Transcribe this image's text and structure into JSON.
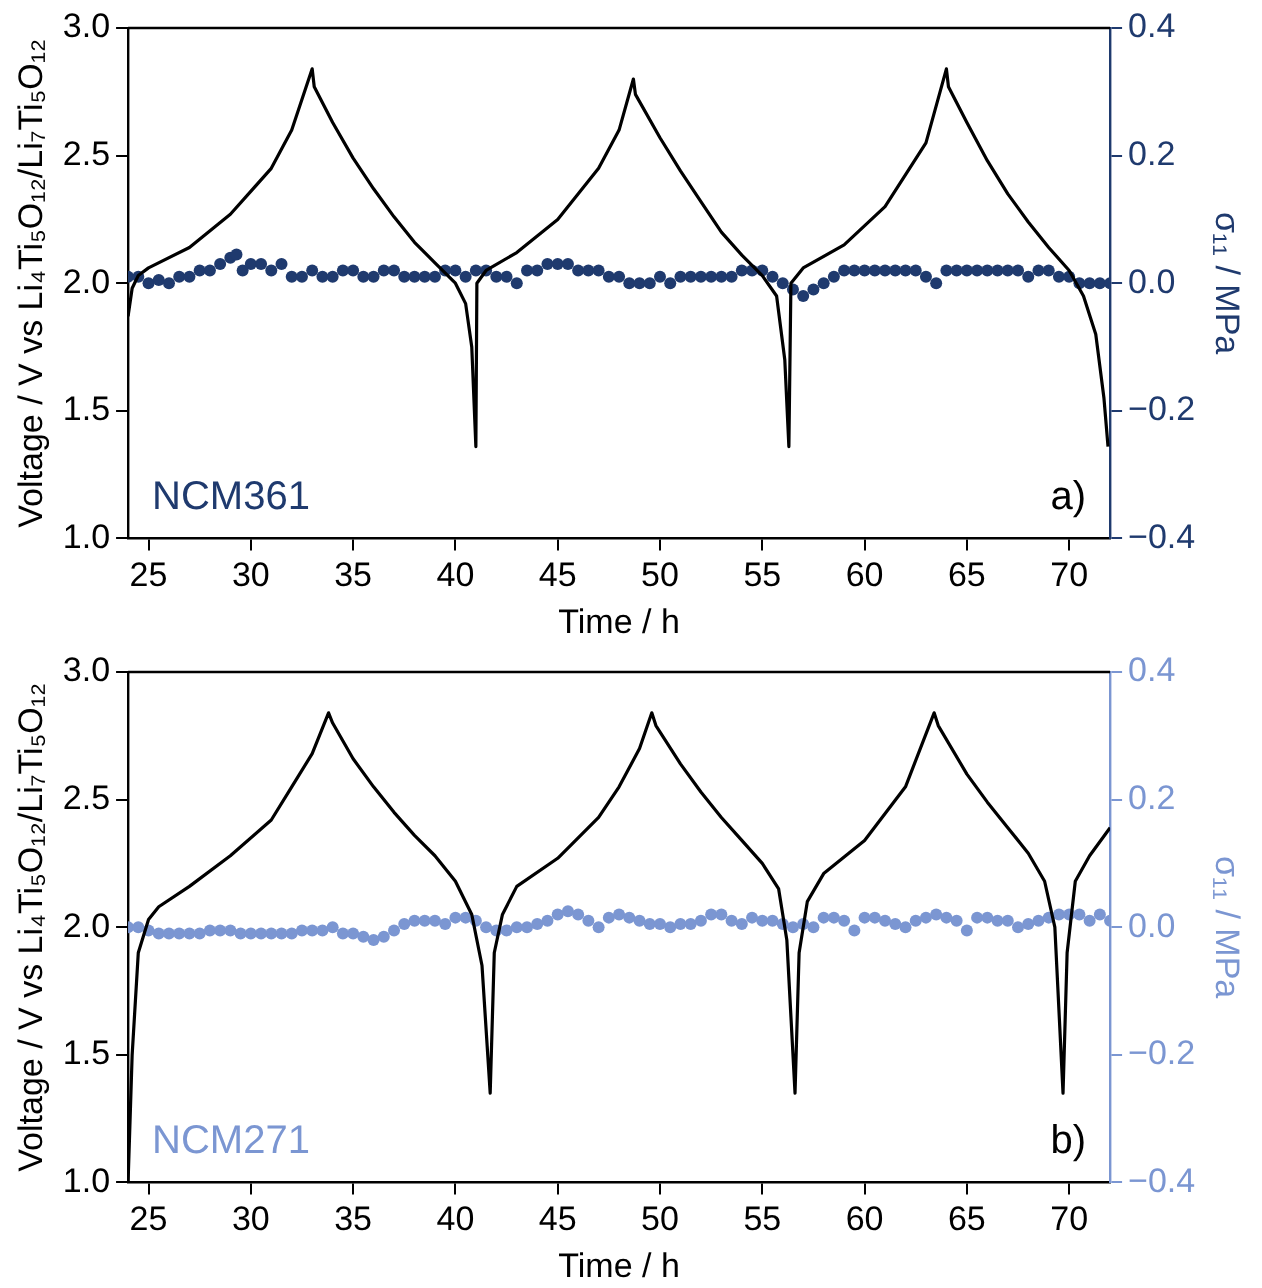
{
  "chart_data": [
    {
      "type": "line",
      "xlabel": "Time / h",
      "ylabel": "Voltage / V vs Li₄Ti₅O₁₂/Li₇Ti₅O₁₂",
      "y2label": "σ₁₁ / MPa",
      "annotations": [
        "a)"
      ],
      "xlim": [
        24,
        72
      ],
      "xticks": [
        25,
        30,
        35,
        40,
        45,
        50,
        55,
        60,
        65,
        70
      ],
      "ylim": [
        1,
        3
      ],
      "yticks": [
        {
          "value": 1,
          "label": "1.0"
        },
        {
          "value": 1.5,
          "label": "1.5"
        },
        {
          "value": 2,
          "label": "2.0"
        },
        {
          "value": 2.5,
          "label": "2.5"
        },
        {
          "value": 3,
          "label": "3.0"
        }
      ],
      "y2lim": [
        -0.4,
        0.4
      ],
      "y2ticks": [
        {
          "value": -0.4,
          "label": "−0.4"
        },
        {
          "value": -0.2,
          "label": "−0.2"
        },
        {
          "value": 0,
          "label": "0.0"
        },
        {
          "value": 0.2,
          "label": "0.2"
        },
        {
          "value": 0.4,
          "label": "0.4"
        }
      ],
      "grid": false,
      "legend": false,
      "series": [
        {
          "type": "line",
          "color": "#000000",
          "marker": "none",
          "x": [
            24,
            24.2,
            24.5,
            25,
            27,
            29,
            31,
            32,
            33,
            33.1,
            34,
            35,
            36,
            37,
            38,
            39,
            40,
            40.5,
            40.8,
            41,
            41.05,
            41.5,
            43,
            45,
            47,
            48,
            48.7,
            48.8,
            50,
            51,
            52,
            53,
            54,
            55,
            55.7,
            56.1,
            56.3,
            56.4,
            57,
            59,
            61,
            63,
            64,
            64.1,
            65,
            66,
            67,
            68,
            69,
            70,
            70.7,
            71.3,
            71.7,
            71.9
          ],
          "values": [
            1.87,
            1.98,
            2.03,
            2.06,
            2.14,
            2.27,
            2.45,
            2.6,
            2.84,
            2.77,
            2.63,
            2.49,
            2.37,
            2.26,
            2.16,
            2.08,
            2.0,
            1.92,
            1.75,
            1.36,
            2.0,
            2.05,
            2.12,
            2.25,
            2.45,
            2.6,
            2.8,
            2.74,
            2.57,
            2.44,
            2.32,
            2.2,
            2.11,
            2.03,
            1.95,
            1.7,
            1.36,
            2.0,
            2.06,
            2.15,
            2.3,
            2.55,
            2.84,
            2.77,
            2.63,
            2.48,
            2.35,
            2.24,
            2.14,
            2.05,
            1.95,
            1.8,
            1.55,
            1.36
          ]
        },
        {
          "type": "scatter",
          "name": "NCM361",
          "color": "#1f3a6e",
          "marker": "circle",
          "axis": "y2",
          "x": [
            24,
            24.5,
            25,
            25.5,
            26,
            26.5,
            27,
            27.5,
            28,
            28.5,
            29,
            29.3,
            29.6,
            30,
            30.5,
            31,
            31.5,
            32,
            32.5,
            33,
            33.5,
            34,
            34.5,
            35,
            35.5,
            36,
            36.5,
            37,
            37.5,
            38,
            38.5,
            39,
            39.5,
            40,
            40.5,
            41,
            41.5,
            42,
            42.5,
            43,
            43.5,
            44,
            44.5,
            45,
            45.5,
            46,
            46.5,
            47,
            47.5,
            48,
            48.5,
            49,
            49.5,
            50,
            50.5,
            51,
            51.5,
            52,
            52.5,
            53,
            53.5,
            54,
            54.5,
            55,
            55.5,
            56,
            56.5,
            57,
            57.5,
            58,
            58.5,
            59,
            59.5,
            60,
            60.5,
            61,
            61.5,
            62,
            62.5,
            63,
            63.5,
            64,
            64.5,
            65,
            65.5,
            66,
            66.5,
            67,
            67.5,
            68,
            68.5,
            69,
            69.5,
            70,
            70.5,
            71,
            71.5,
            72
          ],
          "values": [
            0.01,
            0.01,
            0.0,
            0.005,
            0.0,
            0.01,
            0.01,
            0.02,
            0.02,
            0.03,
            0.04,
            0.045,
            0.02,
            0.03,
            0.03,
            0.02,
            0.03,
            0.01,
            0.01,
            0.02,
            0.01,
            0.01,
            0.02,
            0.02,
            0.01,
            0.01,
            0.02,
            0.02,
            0.01,
            0.01,
            0.01,
            0.01,
            0.02,
            0.02,
            0.01,
            0.02,
            0.02,
            0.01,
            0.01,
            0.0,
            0.02,
            0.02,
            0.03,
            0.03,
            0.03,
            0.02,
            0.02,
            0.02,
            0.01,
            0.01,
            0.0,
            0.0,
            0.0,
            0.01,
            0.0,
            0.01,
            0.01,
            0.01,
            0.01,
            0.01,
            0.01,
            0.02,
            0.02,
            0.02,
            0.01,
            0.0,
            -0.01,
            -0.02,
            -0.01,
            0.0,
            0.01,
            0.02,
            0.02,
            0.02,
            0.02,
            0.02,
            0.02,
            0.02,
            0.02,
            0.01,
            0.0,
            0.02,
            0.02,
            0.02,
            0.02,
            0.02,
            0.02,
            0.02,
            0.02,
            0.01,
            0.02,
            0.02,
            0.01,
            0.01,
            0.0,
            0.0,
            0.0,
            0.0
          ]
        }
      ]
    },
    {
      "type": "line",
      "xlabel": "Time / h",
      "ylabel": "Voltage / V vs Li₄Ti₅O₁₂/Li₇Ti₅O₁₂",
      "y2label": "σ₁₁ / MPa",
      "annotations": [
        "b)"
      ],
      "xlim": [
        24,
        72
      ],
      "xticks": [
        25,
        30,
        35,
        40,
        45,
        50,
        55,
        60,
        65,
        70
      ],
      "ylim": [
        1,
        3
      ],
      "yticks": [
        {
          "value": 1,
          "label": "1.0"
        },
        {
          "value": 1.5,
          "label": "1.5"
        },
        {
          "value": 2,
          "label": "2.0"
        },
        {
          "value": 2.5,
          "label": "2.5"
        },
        {
          "value": 3,
          "label": "3.0"
        }
      ],
      "y2lim": [
        -0.4,
        0.4
      ],
      "y2ticks": [
        {
          "value": -0.4,
          "label": "−0.4"
        },
        {
          "value": -0.2,
          "label": "−0.2"
        },
        {
          "value": 0,
          "label": "0.0"
        },
        {
          "value": 0.2,
          "label": "0.2"
        },
        {
          "value": 0.4,
          "label": "0.4"
        }
      ],
      "grid": false,
      "legend": false,
      "series": [
        {
          "type": "line",
          "color": "#000000",
          "marker": "none",
          "x": [
            24,
            24.2,
            24.5,
            25,
            25.5,
            27,
            29,
            31,
            32,
            33,
            33.8,
            34,
            35,
            36,
            37,
            38,
            39,
            40,
            40.8,
            41.3,
            41.7,
            41.9,
            42.3,
            43,
            45,
            47,
            48,
            49,
            49.6,
            49.8,
            51,
            52,
            53,
            54,
            55,
            55.8,
            56.2,
            56.6,
            56.8,
            57.2,
            58,
            60,
            62,
            63.4,
            63.6,
            65,
            66,
            67,
            68,
            68.8,
            69.3,
            69.7,
            69.9,
            70.3,
            71,
            72
          ],
          "values": [
            1.0,
            1.5,
            1.9,
            2.03,
            2.08,
            2.16,
            2.28,
            2.42,
            2.55,
            2.68,
            2.84,
            2.8,
            2.66,
            2.55,
            2.45,
            2.36,
            2.28,
            2.18,
            2.05,
            1.85,
            1.35,
            1.9,
            2.05,
            2.16,
            2.27,
            2.43,
            2.55,
            2.7,
            2.84,
            2.79,
            2.64,
            2.53,
            2.43,
            2.34,
            2.25,
            2.15,
            1.95,
            1.35,
            1.9,
            2.1,
            2.21,
            2.34,
            2.55,
            2.84,
            2.79,
            2.6,
            2.49,
            2.39,
            2.29,
            2.18,
            2.0,
            1.35,
            1.9,
            2.18,
            2.28,
            2.39
          ]
        },
        {
          "type": "scatter",
          "name": "NCM271",
          "color": "#7b96d2",
          "marker": "circle",
          "axis": "y2",
          "x": [
            24,
            24.5,
            25,
            25.5,
            26,
            26.5,
            27,
            27.5,
            28,
            28.5,
            29,
            29.5,
            30,
            30.5,
            31,
            31.5,
            32,
            32.5,
            33,
            33.5,
            34,
            34.5,
            35,
            35.5,
            36,
            36.5,
            37,
            37.5,
            38,
            38.5,
            39,
            39.5,
            40,
            40.5,
            41,
            41.5,
            42,
            42.5,
            43,
            43.5,
            44,
            44.5,
            45,
            45.5,
            46,
            46.5,
            47,
            47.5,
            48,
            48.5,
            49,
            49.5,
            50,
            50.5,
            51,
            51.5,
            52,
            52.5,
            53,
            53.5,
            54,
            54.5,
            55,
            55.5,
            56,
            56.5,
            57,
            57.5,
            58,
            58.5,
            59,
            59.5,
            60,
            60.5,
            61,
            61.5,
            62,
            62.5,
            63,
            63.5,
            64,
            64.5,
            65,
            65.5,
            66,
            66.5,
            67,
            67.5,
            68,
            68.5,
            69,
            69.5,
            70,
            70.5,
            71,
            71.5,
            72
          ],
          "values": [
            0.0,
            0.0,
            -0.005,
            -0.01,
            -0.01,
            -0.01,
            -0.01,
            -0.01,
            -0.005,
            -0.005,
            -0.005,
            -0.01,
            -0.01,
            -0.01,
            -0.01,
            -0.01,
            -0.01,
            -0.005,
            -0.005,
            -0.005,
            0.0,
            -0.01,
            -0.01,
            -0.015,
            -0.02,
            -0.015,
            -0.005,
            0.005,
            0.01,
            0.01,
            0.01,
            0.005,
            0.015,
            0.015,
            0.01,
            0.0,
            -0.005,
            -0.005,
            0.0,
            0.0,
            0.005,
            0.01,
            0.02,
            0.025,
            0.02,
            0.01,
            0.0,
            0.015,
            0.02,
            0.015,
            0.01,
            0.005,
            0.005,
            0.0,
            0.005,
            0.005,
            0.01,
            0.02,
            0.02,
            0.01,
            0.005,
            0.015,
            0.01,
            0.01,
            0.005,
            0.0,
            0.005,
            0.0,
            0.015,
            0.015,
            0.01,
            -0.005,
            0.015,
            0.015,
            0.01,
            0.005,
            0.0,
            0.01,
            0.015,
            0.02,
            0.015,
            0.01,
            -0.005,
            0.015,
            0.015,
            0.01,
            0.01,
            0.0,
            0.005,
            0.01,
            0.015,
            0.02,
            0.02,
            0.02,
            0.01,
            0.02,
            0.01
          ]
        }
      ]
    }
  ]
}
